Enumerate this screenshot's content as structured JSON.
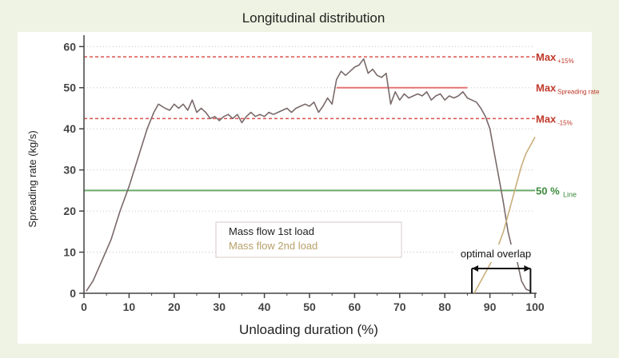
{
  "chart_data": {
    "type": "line",
    "title": "Longitudinal distribution",
    "xlabel": "Unloading duration (%)",
    "ylabel": "Spreading rate (kg/s)",
    "xlim": [
      0,
      100
    ],
    "ylim": [
      0,
      62
    ],
    "xticks": [
      "0",
      "10",
      "20",
      "30",
      "40",
      "50",
      "60",
      "70",
      "80",
      "90",
      "100"
    ],
    "yticks": [
      "0",
      "10",
      "20",
      "30",
      "40",
      "50",
      "60"
    ],
    "grid": "dotted horizontal",
    "reference_lines": [
      {
        "label": "Max",
        "sub": "+15%",
        "y": 57.5,
        "color": "#d9534f",
        "style": "dashed"
      },
      {
        "label": "Max",
        "sub": "Spreading rate",
        "y": 50,
        "color": "#e57373",
        "style": "solid",
        "x_range": [
          56,
          85
        ]
      },
      {
        "label": "Max",
        "sub": "-15%",
        "y": 42.5,
        "color": "#d9534f",
        "style": "dashed"
      },
      {
        "label": "50 %",
        "sub": "Line",
        "y": 25,
        "color": "#6aa96a",
        "style": "solid"
      }
    ],
    "series": [
      {
        "name": "Mass flow 1st load",
        "color": "#7a6a6a",
        "x": [
          0.5,
          2,
          4,
          6,
          8,
          10,
          12,
          14,
          15.5,
          16.5,
          18,
          19,
          20,
          21,
          22,
          23,
          24,
          25,
          26,
          27,
          28,
          29,
          30,
          31,
          32,
          33,
          34,
          35,
          36,
          37,
          38,
          39,
          40,
          41,
          42,
          43,
          44,
          45,
          46,
          47,
          48,
          49,
          50,
          51,
          52,
          53,
          54,
          55,
          56,
          57,
          58,
          59,
          60,
          61,
          62,
          63,
          64,
          65,
          66,
          67,
          68,
          69,
          70,
          71,
          72,
          73,
          74,
          75,
          76,
          77,
          78,
          79,
          80,
          81,
          82,
          83,
          84,
          85,
          86,
          87,
          88,
          89,
          90,
          91,
          92,
          93,
          94,
          95,
          96,
          97,
          98,
          99
        ],
        "y": [
          0.5,
          3,
          8,
          13,
          20,
          26,
          33,
          40,
          44,
          46,
          45,
          44.5,
          46,
          45,
          46,
          44.5,
          47,
          44,
          45,
          44,
          42.5,
          43,
          42,
          43,
          43.5,
          42.5,
          43.5,
          41.5,
          43,
          44,
          43,
          43.5,
          43,
          44,
          43.5,
          44,
          44.5,
          45,
          44,
          45,
          45.5,
          46,
          45.5,
          46.5,
          44,
          45.5,
          47.5,
          46,
          52,
          54,
          53,
          54,
          55,
          55.5,
          57,
          53.5,
          54.5,
          53,
          52.5,
          53.5,
          46,
          49,
          47,
          48.5,
          47.5,
          48,
          48.5,
          48,
          49,
          47,
          48,
          48.5,
          47,
          48,
          47.5,
          48,
          49,
          47.5,
          47,
          46.5,
          45,
          43,
          40,
          34,
          28,
          22,
          15,
          10.5,
          8,
          3,
          1,
          0.5
        ]
      },
      {
        "name": "Mass flow 2nd load",
        "color": "#c8ae7a",
        "x": [
          86.5,
          88,
          89,
          90,
          91,
          92,
          93,
          94,
          95,
          96,
          97,
          98,
          99,
          100
        ],
        "y": [
          0,
          3,
          5,
          7,
          9,
          12,
          15,
          19,
          23,
          27,
          31,
          34,
          36,
          38
        ]
      }
    ],
    "annotations": {
      "overlap_label": "optimal overlap",
      "overlap_range": [
        86,
        99
      ]
    }
  }
}
